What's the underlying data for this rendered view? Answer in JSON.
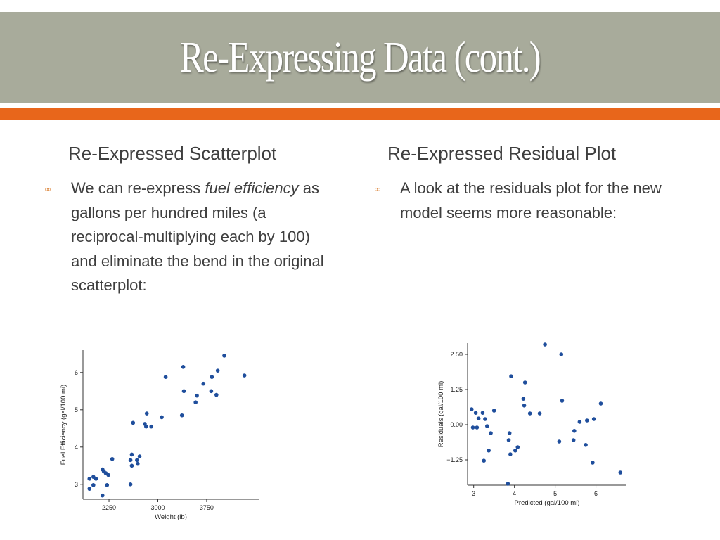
{
  "slide": {
    "title": "Re-Expressing Data (cont.)",
    "colors": {
      "title_bar": "#a8ab9b",
      "accent": "#e8661b",
      "points": "#1f4e9c"
    }
  },
  "left": {
    "heading": "Re-Expressed Scatterplot",
    "bullet_icon": "loop-bullet-icon",
    "text_1": "We can re-express ",
    "text_italic": "fuel efficiency",
    "text_2": " as gallons per hundred miles (a reciprocal-multiplying each by 100) and eliminate the bend in the original scatterplot:"
  },
  "right": {
    "heading": "Re-Expressed Residual Plot",
    "bullet_icon": "loop-bullet-icon",
    "text": "A look at the residuals plot for the new model seems more reasonable:"
  },
  "chart_data": [
    {
      "type": "scatter",
      "xlabel": "Weight (lb)",
      "ylabel": "Fuel Efficiency (gal/100 mi)",
      "xlim": [
        1850,
        4550
      ],
      "ylim": [
        2.6,
        6.6
      ],
      "xticks": [
        2250,
        3000,
        3750
      ],
      "yticks": [
        3,
        4,
        5,
        6
      ],
      "grid": false,
      "points": [
        [
          1950,
          2.88
        ],
        [
          1950,
          3.15
        ],
        [
          2010,
          3.2
        ],
        [
          2010,
          2.98
        ],
        [
          2050,
          3.15
        ],
        [
          2150,
          3.4
        ],
        [
          2150,
          2.7
        ],
        [
          2170,
          3.35
        ],
        [
          2200,
          3.3
        ],
        [
          2220,
          2.98
        ],
        [
          2240,
          3.25
        ],
        [
          2300,
          3.68
        ],
        [
          2580,
          3.0
        ],
        [
          2580,
          3.65
        ],
        [
          2600,
          3.5
        ],
        [
          2600,
          3.8
        ],
        [
          2620,
          4.65
        ],
        [
          2680,
          3.65
        ],
        [
          2690,
          3.55
        ],
        [
          2720,
          3.75
        ],
        [
          2800,
          4.62
        ],
        [
          2820,
          4.55
        ],
        [
          2830,
          4.9
        ],
        [
          2900,
          4.55
        ],
        [
          3060,
          4.8
        ],
        [
          3120,
          5.88
        ],
        [
          3370,
          4.85
        ],
        [
          3390,
          6.15
        ],
        [
          3400,
          5.5
        ],
        [
          3580,
          5.2
        ],
        [
          3600,
          5.38
        ],
        [
          3700,
          5.7
        ],
        [
          3820,
          5.5
        ],
        [
          3830,
          5.88
        ],
        [
          3900,
          5.4
        ],
        [
          3920,
          6.05
        ],
        [
          4020,
          6.45
        ],
        [
          4330,
          5.92
        ]
      ]
    },
    {
      "type": "scatter",
      "xlabel": "Predicted (gal/100 mi)",
      "ylabel": "Residuals (gal/100 mi)",
      "xlim": [
        2.85,
        6.75
      ],
      "ylim": [
        -2.15,
        2.9
      ],
      "xticks": [
        3,
        4,
        5,
        6
      ],
      "yticks": [
        2.5,
        1.25,
        0.0,
        -1.25
      ],
      "ytick_labels": [
        "2.50",
        "1.25",
        "0.00",
        "−1.25"
      ],
      "grid": false,
      "points": [
        [
          2.95,
          0.55
        ],
        [
          2.98,
          -0.1
        ],
        [
          3.05,
          0.42
        ],
        [
          3.08,
          -0.1
        ],
        [
          3.12,
          0.22
        ],
        [
          3.22,
          0.42
        ],
        [
          3.25,
          -1.28
        ],
        [
          3.28,
          0.2
        ],
        [
          3.33,
          -0.05
        ],
        [
          3.37,
          -0.92
        ],
        [
          3.42,
          -0.3
        ],
        [
          3.5,
          0.5
        ],
        [
          3.84,
          -2.1
        ],
        [
          3.86,
          -0.55
        ],
        [
          3.88,
          -0.3
        ],
        [
          3.9,
          -1.05
        ],
        [
          3.92,
          1.72
        ],
        [
          4.02,
          -0.92
        ],
        [
          4.08,
          -0.8
        ],
        [
          4.22,
          0.92
        ],
        [
          4.24,
          0.68
        ],
        [
          4.26,
          1.5
        ],
        [
          4.38,
          0.4
        ],
        [
          4.62,
          0.4
        ],
        [
          4.75,
          2.85
        ],
        [
          5.1,
          -0.6
        ],
        [
          5.15,
          2.5
        ],
        [
          5.17,
          0.85
        ],
        [
          5.45,
          -0.55
        ],
        [
          5.47,
          -0.22
        ],
        [
          5.6,
          0.1
        ],
        [
          5.75,
          -0.72
        ],
        [
          5.78,
          0.15
        ],
        [
          5.92,
          -1.35
        ],
        [
          5.95,
          0.2
        ],
        [
          6.12,
          0.75
        ],
        [
          6.6,
          -1.7
        ]
      ]
    }
  ]
}
